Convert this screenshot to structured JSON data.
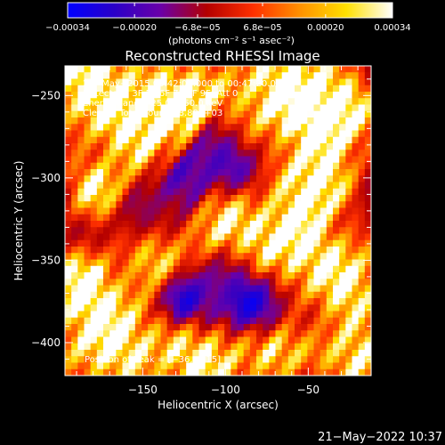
{
  "chart_data": {
    "type": "heatmap",
    "title": "Reconstructed RHESSI Image",
    "xlabel": "Heliocentric X (arcsec)",
    "ylabel": "Heliocentric Y (arcsec)",
    "xlim": [
      -197,
      -12
    ],
    "ylim": [
      -420,
      -232
    ],
    "xticks": [
      {
        "value": -150,
        "label": "−150"
      },
      {
        "value": -100,
        "label": "−100"
      },
      {
        "value": -50,
        "label": "−50"
      }
    ],
    "yticks": [
      {
        "value": -250,
        "label": "−250"
      },
      {
        "value": -300,
        "label": "−300"
      },
      {
        "value": -350,
        "label": "−350"
      },
      {
        "value": -400,
        "label": "−400"
      }
    ],
    "colorbar": {
      "range": [
        -0.00034,
        0.00034
      ],
      "ticks": [
        {
          "value": -0.00034,
          "label": "−0.00034"
        },
        {
          "value": -0.0002,
          "label": "−0.00020"
        },
        {
          "value": -6.8e-05,
          "label": "−6.8e−05"
        },
        {
          "value": 6.8e-05,
          "label": "6.8e−05"
        },
        {
          "value": 0.0002,
          "label": "0.00020"
        },
        {
          "value": 0.00034,
          "label": "0.00034"
        }
      ],
      "unit_label": "(photons cm⁻² s⁻¹ asec⁻²)",
      "colors": [
        "#0000ff",
        "#2a00c8",
        "#6a00a8",
        "#b40000",
        "#ff3000",
        "#ff9000",
        "#ffe000",
        "#ffffff"
      ]
    },
    "annotations": [
      "21−May−2015 00:42:04.000 to 00:47:20.000",
      "Detectors: 3F 5F 6F 7F 8F 9F, Att 0",
      "Energy Range: 25.0 − 50.0 keV",
      "Clean    Total counts: 8.80E+03",
      "Position of Peak = [−36,−415]"
    ],
    "peak": {
      "x": -36,
      "y": -415
    }
  },
  "footer": {
    "timestamp": "21−May−2022 10:37"
  }
}
